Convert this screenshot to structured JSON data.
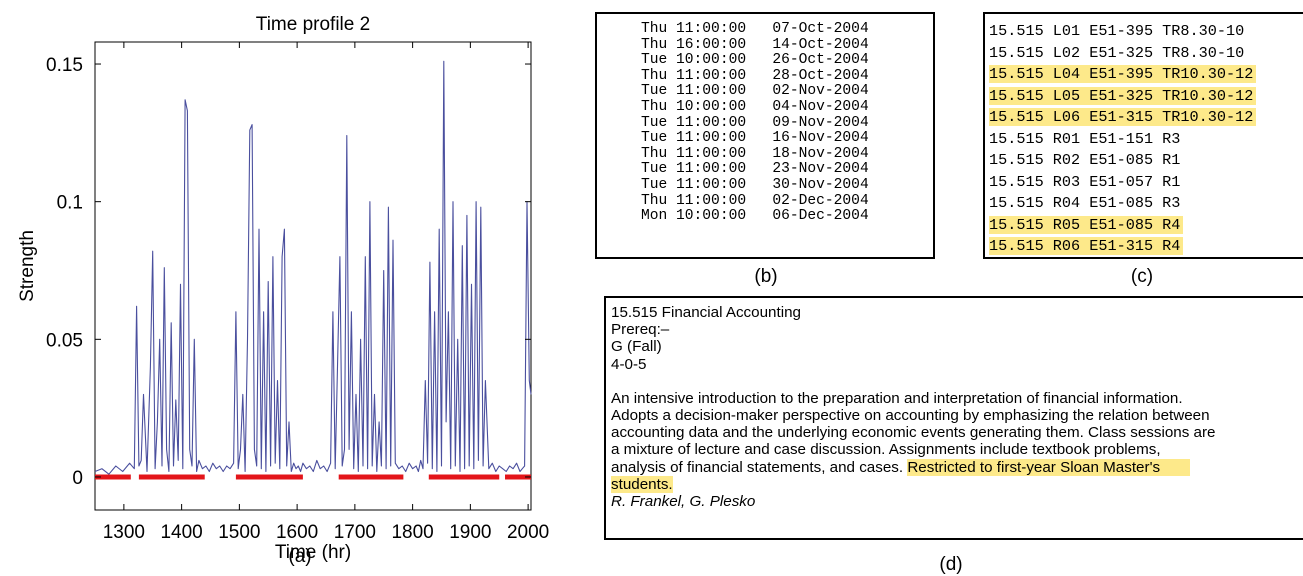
{
  "chart_data": {
    "type": "line",
    "title": "Time profile 2",
    "xlabel": "Time (hr)",
    "ylabel": "Strength",
    "xlim": [
      1250,
      2005
    ],
    "ylim": [
      -0.012,
      0.158
    ],
    "xticks": [
      1300,
      1400,
      1500,
      1600,
      1700,
      1800,
      1900,
      2000
    ],
    "xtick_labels": [
      "1300",
      "1400",
      "1500",
      "1600",
      "1700",
      "1800",
      "1900",
      "2000"
    ],
    "yticks": [
      0,
      0.05,
      0.1,
      0.15
    ],
    "ytick_labels": [
      "0",
      "0.05",
      "0.1",
      "0.15"
    ],
    "grid": false,
    "line_color": "#4a4f9e",
    "marker_color": "#e3151a",
    "series": [
      {
        "x": [
          1250,
          1262,
          1274,
          1286,
          1298,
          1310,
          1318,
          1322,
          1326,
          1330,
          1334,
          1340,
          1346,
          1350,
          1354,
          1358,
          1362,
          1366,
          1370,
          1374,
          1378,
          1382,
          1386,
          1390,
          1394,
          1398,
          1402,
          1406,
          1410,
          1414,
          1418,
          1422,
          1426,
          1430,
          1436,
          1442,
          1448,
          1454,
          1460,
          1466,
          1472,
          1478,
          1484,
          1490,
          1494,
          1498,
          1502,
          1506,
          1510,
          1514,
          1518,
          1522,
          1526,
          1530,
          1534,
          1538,
          1542,
          1546,
          1550,
          1554,
          1558,
          1562,
          1566,
          1570,
          1574,
          1578,
          1582,
          1586,
          1590,
          1594,
          1598,
          1602,
          1606,
          1610,
          1616,
          1622,
          1628,
          1634,
          1640,
          1646,
          1652,
          1658,
          1662,
          1666,
          1670,
          1674,
          1678,
          1682,
          1686,
          1690,
          1694,
          1698,
          1702,
          1706,
          1710,
          1714,
          1718,
          1722,
          1726,
          1730,
          1734,
          1738,
          1742,
          1746,
          1750,
          1754,
          1758,
          1762,
          1766,
          1770,
          1776,
          1782,
          1788,
          1794,
          1800,
          1806,
          1810,
          1814,
          1818,
          1822,
          1826,
          1830,
          1834,
          1838,
          1842,
          1846,
          1850,
          1854,
          1858,
          1862,
          1866,
          1870,
          1874,
          1878,
          1882,
          1886,
          1890,
          1894,
          1898,
          1902,
          1906,
          1910,
          1914,
          1918,
          1922,
          1926,
          1932,
          1938,
          1944,
          1950,
          1956,
          1962,
          1968,
          1974,
          1980,
          1986,
          1990,
          1994,
          1998,
          2002,
          2005
        ],
        "y": [
          0.002,
          0.003,
          0.001,
          0.004,
          0.002,
          0.005,
          0.003,
          0.062,
          0.004,
          0.006,
          0.03,
          0.002,
          0.04,
          0.082,
          0.003,
          0.02,
          0.05,
          0.004,
          0.076,
          0.01,
          0.002,
          0.056,
          0.004,
          0.028,
          0.006,
          0.07,
          0.003,
          0.137,
          0.133,
          0.01,
          0.004,
          0.05,
          0.002,
          0.006,
          0.003,
          0.004,
          0.002,
          0.005,
          0.003,
          0.004,
          0.002,
          0.004,
          0.003,
          0.005,
          0.06,
          0.003,
          0.01,
          0.03,
          0.002,
          0.05,
          0.126,
          0.128,
          0.01,
          0.004,
          0.09,
          0.003,
          0.06,
          0.002,
          0.071,
          0.004,
          0.08,
          0.005,
          0.035,
          0.003,
          0.08,
          0.09,
          0.004,
          0.02,
          0.002,
          0.005,
          0.003,
          0.004,
          0.002,
          0.005,
          0.003,
          0.004,
          0.002,
          0.006,
          0.003,
          0.004,
          0.002,
          0.005,
          0.06,
          0.003,
          0.04,
          0.08,
          0.004,
          0.01,
          0.124,
          0.01,
          0.06,
          0.003,
          0.03,
          0.002,
          0.05,
          0.004,
          0.08,
          0.003,
          0.1,
          0.004,
          0.03,
          0.002,
          0.02,
          0.004,
          0.075,
          0.003,
          0.098,
          0.004,
          0.086,
          0.005,
          0.003,
          0.004,
          0.002,
          0.005,
          0.003,
          0.004,
          0.002,
          0.006,
          0.003,
          0.035,
          0.005,
          0.078,
          0.003,
          0.06,
          0.002,
          0.09,
          0.004,
          0.151,
          0.02,
          0.06,
          0.003,
          0.1,
          0.004,
          0.05,
          0.002,
          0.084,
          0.003,
          0.095,
          0.004,
          0.07,
          0.003,
          0.1,
          0.006,
          0.098,
          0.004,
          0.035,
          0.003,
          0.005,
          0.002,
          0.004,
          0.003,
          0.002,
          0.004,
          0.003,
          0.005,
          0.002,
          0.003,
          0.004,
          0.1,
          0.035,
          0.03
        ]
      }
    ],
    "highlight_intervals": [
      [
        1250,
        1312
      ],
      [
        1326,
        1440
      ],
      [
        1494,
        1610
      ],
      [
        1672,
        1784
      ],
      [
        1828,
        1950
      ],
      [
        1960,
        2005
      ]
    ],
    "highlight_y": 0
  },
  "captions": {
    "a": "(a)",
    "b": "(b)",
    "c": "(c)",
    "d": "(d)"
  },
  "schedule": [
    "Thu 11:00:00   07-Oct-2004",
    "Thu 16:00:00   14-Oct-2004",
    "Tue 10:00:00   26-Oct-2004",
    "Thu 11:00:00   28-Oct-2004",
    "Tue 11:00:00   02-Nov-2004",
    "Thu 10:00:00   04-Nov-2004",
    "Tue 11:00:00   09-Nov-2004",
    "Tue 11:00:00   16-Nov-2004",
    "Thu 11:00:00   18-Nov-2004",
    "Tue 11:00:00   23-Nov-2004",
    "Tue 11:00:00   30-Nov-2004",
    "Thu 11:00:00   02-Dec-2004",
    "Mon 10:00:00   06-Dec-2004"
  ],
  "sections": [
    {
      "text": "15.515 L01 E51-395 TR8.30-10",
      "highlighted": false
    },
    {
      "text": "15.515 L02 E51-325 TR8.30-10",
      "highlighted": false
    },
    {
      "text": "15.515 L04 E51-395 TR10.30-12",
      "highlighted": true
    },
    {
      "text": "15.515 L05 E51-325 TR10.30-12",
      "highlighted": true
    },
    {
      "text": "15.515 L06 E51-315 TR10.30-12",
      "highlighted": true
    },
    {
      "text": "15.515 R01 E51-151 R3",
      "highlighted": false
    },
    {
      "text": "15.515 R02 E51-085 R1",
      "highlighted": false
    },
    {
      "text": "15.515 R03 E51-057 R1",
      "highlighted": false
    },
    {
      "text": "15.515 R04 E51-085 R3",
      "highlighted": false
    },
    {
      "text": "15.515 R05 E51-085 R4",
      "highlighted": true
    },
    {
      "text": "15.515 R06 E51-315 R4",
      "highlighted": true
    }
  ],
  "highlight_color": "#fde98a",
  "course": {
    "title": "15.515 Financial Accounting",
    "prereq": "Prereq:–",
    "term": "G (Fall)",
    "units": "4-0-5",
    "description_lines": [
      "An intensive introduction to the preparation and interpretation of financial information.",
      "Adopts a decision-maker perspective on accounting by emphasizing the relation between",
      "accounting data and the underlying economic events generating them. Class sessions are",
      "a mixture of lecture and case discussion. Assignments include textbook problems,"
    ],
    "line5_plain": "analysis of financial statements, and cases.",
    "line5_highlight": "Restricted to first-year Sloan Master's",
    "line6_highlight": "students.",
    "instructors": "R. Frankel, G. Plesko"
  }
}
